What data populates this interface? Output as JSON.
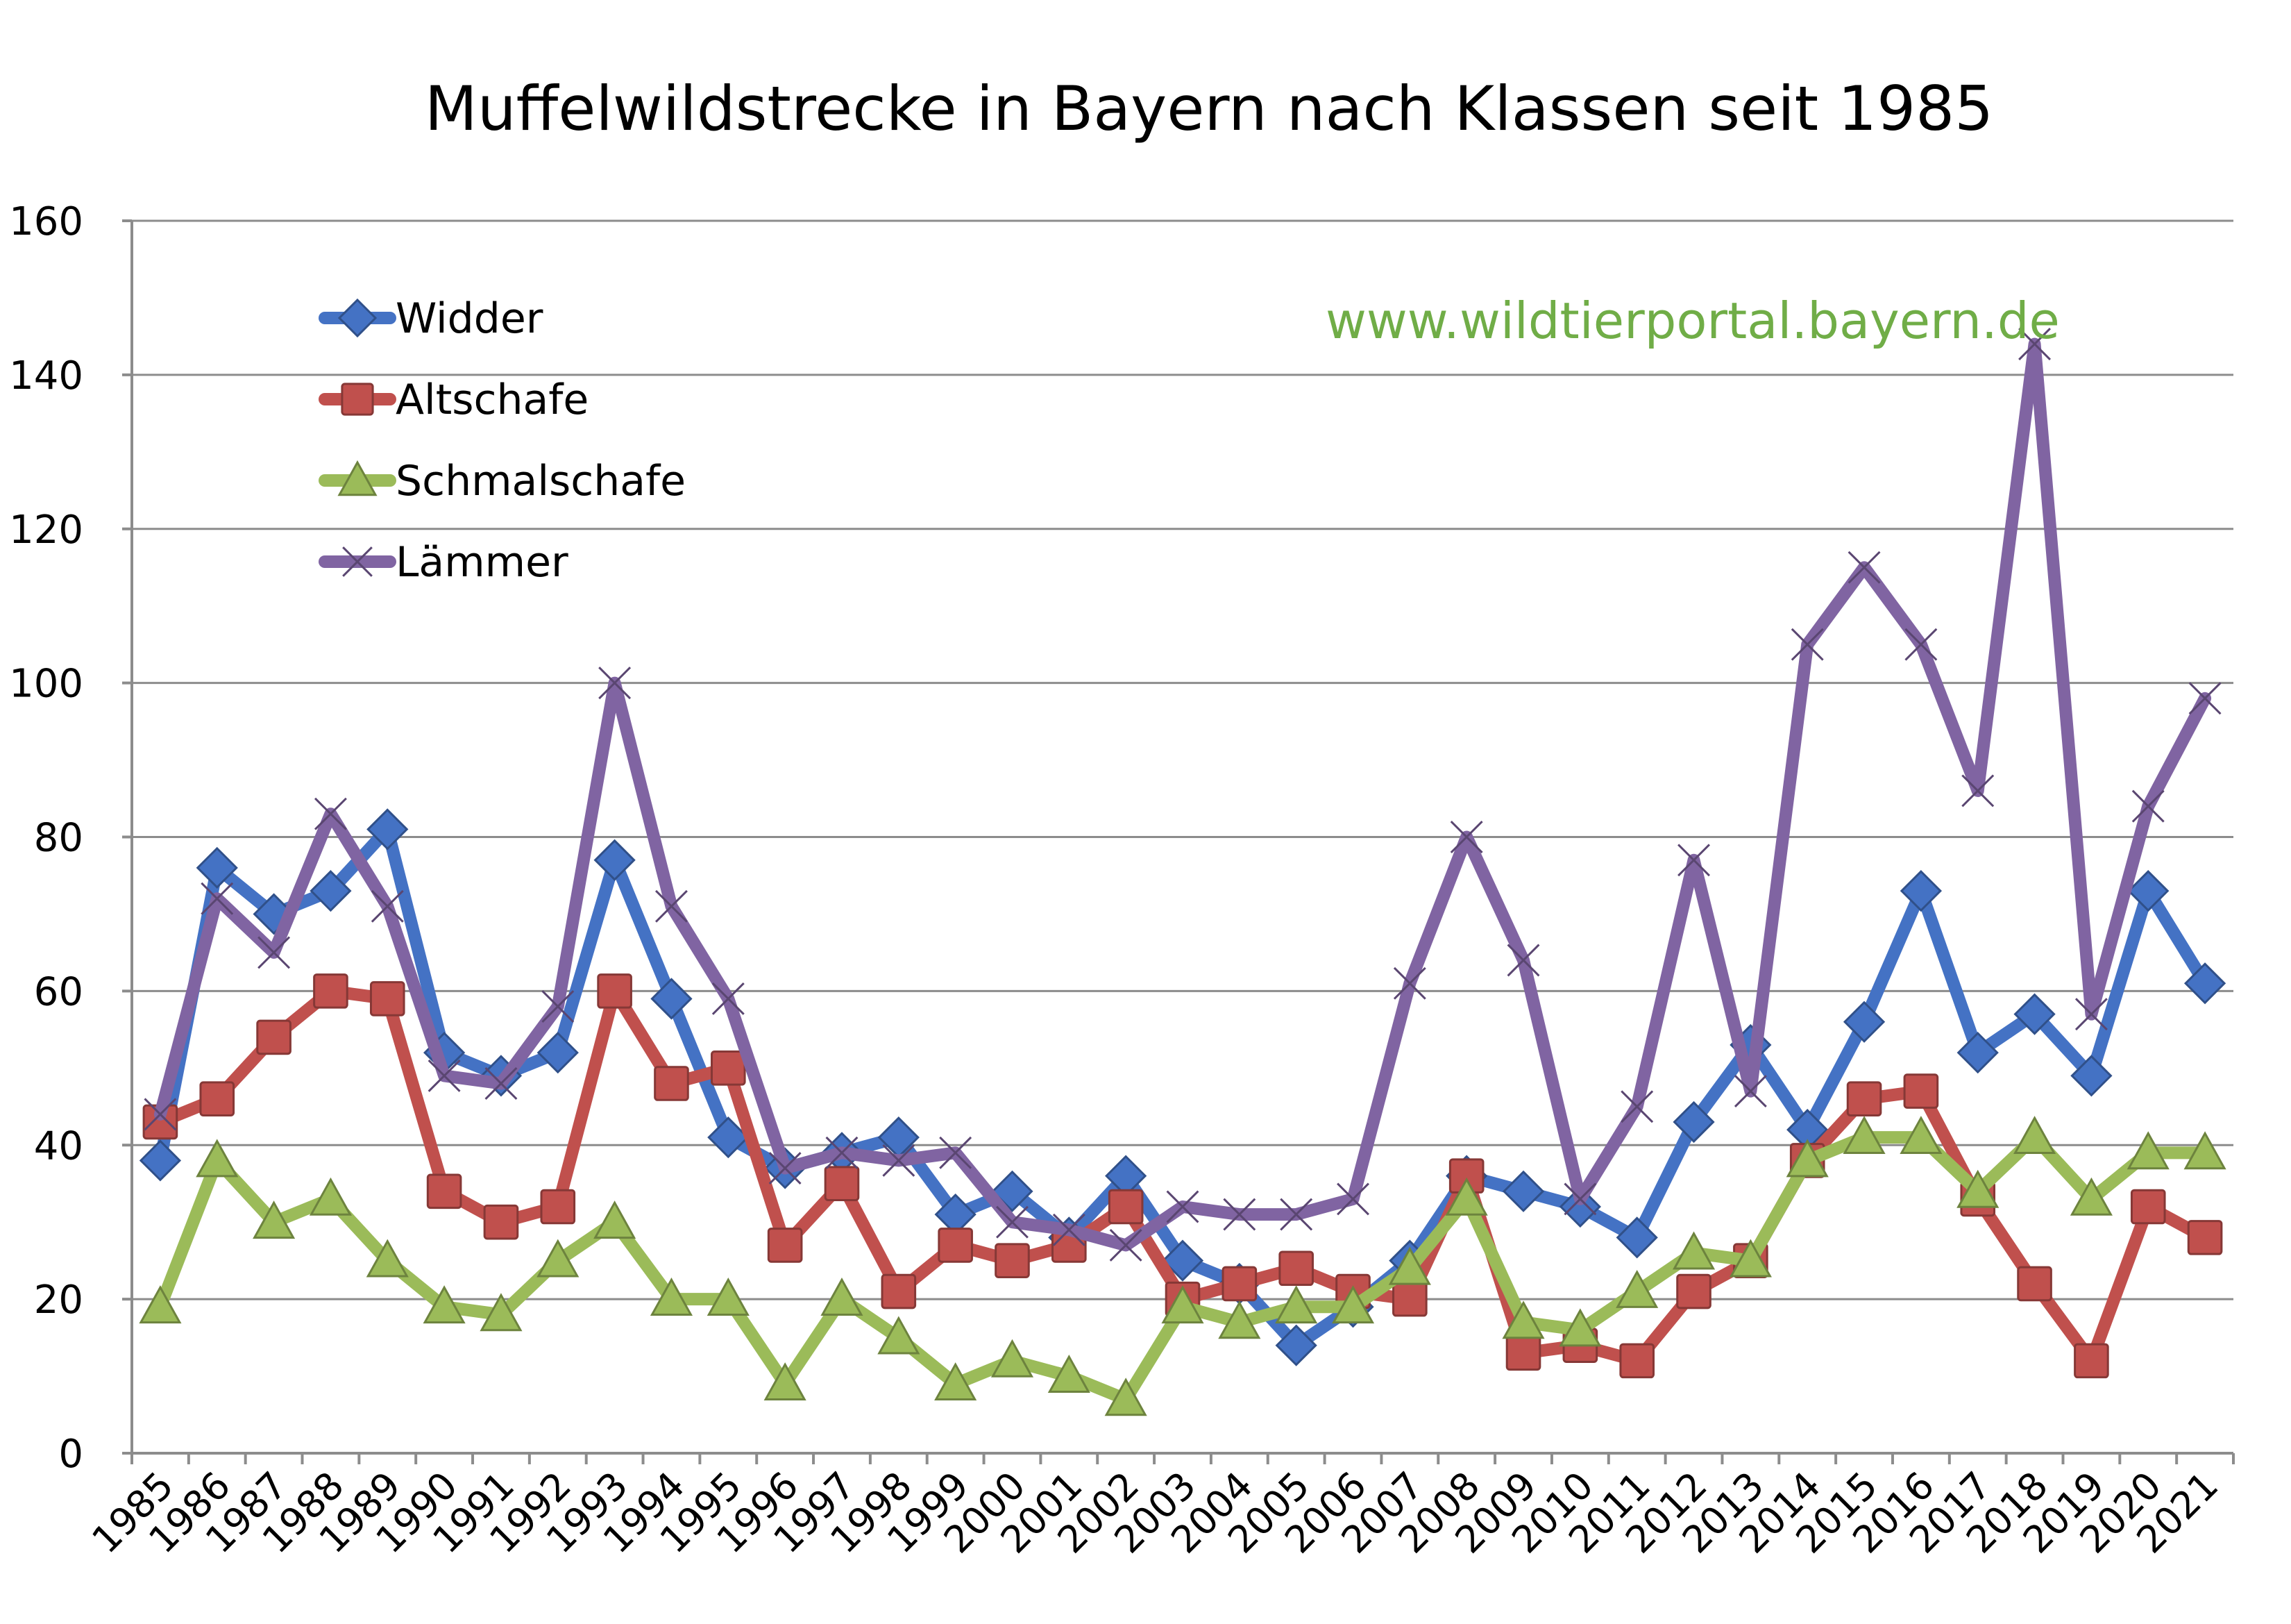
{
  "chart_data": {
    "type": "line",
    "title": "Muffelwildstrecke in Bayern nach Klassen seit 1985",
    "watermark": "www.wildtierportal.bayern.de",
    "watermark_color": "#70ad47",
    "xlabel": "",
    "ylabel": "",
    "ylim": [
      0,
      160
    ],
    "yticks": [
      "0",
      "20",
      "40",
      "60",
      "80",
      "100",
      "120",
      "140",
      "160"
    ],
    "grid": true,
    "legend_position": "top-left",
    "categories": [
      "1985",
      "1986",
      "1987",
      "1988",
      "1989",
      "1990",
      "1991",
      "1992",
      "1993",
      "1994",
      "1995",
      "1996",
      "1997",
      "1998",
      "1999",
      "2000",
      "2001",
      "2002",
      "2003",
      "2004",
      "2005",
      "2006",
      "2007",
      "2008",
      "2009",
      "2010",
      "2011",
      "2012",
      "2013",
      "2014",
      "2015",
      "2016",
      "2017",
      "2018",
      "2019",
      "2020",
      "2021"
    ],
    "series": [
      {
        "name": "Widder",
        "color": "#4472c4",
        "marker": "diamond",
        "values": [
          38,
          76,
          70,
          73,
          81,
          52,
          49,
          52,
          77,
          59,
          41,
          37,
          39,
          41,
          31,
          34,
          28,
          36,
          25,
          22,
          14,
          19,
          25,
          36,
          34,
          32,
          28,
          43,
          53,
          42,
          56,
          73,
          52,
          57,
          49,
          73,
          61
        ]
      },
      {
        "name": "Altschafe",
        "color": "#c0504d",
        "marker": "square",
        "values": [
          43,
          46,
          54,
          60,
          59,
          34,
          30,
          32,
          60,
          48,
          50,
          27,
          35,
          21,
          27,
          25,
          27,
          32,
          20,
          22,
          24,
          21,
          20,
          36,
          13,
          14,
          12,
          21,
          25,
          38,
          46,
          47,
          33,
          22,
          12,
          32,
          28
        ]
      },
      {
        "name": "Schmalschafe",
        "color": "#9bbb59",
        "marker": "triangle",
        "values": [
          19,
          38,
          30,
          33,
          25,
          19,
          18,
          25,
          30,
          20,
          20,
          9,
          20,
          15,
          9,
          12,
          10,
          7,
          19,
          17,
          19,
          19,
          24,
          33,
          17,
          16,
          21,
          26,
          25,
          38,
          41,
          41,
          34,
          41,
          33,
          39,
          39
        ]
      },
      {
        "name": "Lämmer",
        "color": "#8064a2",
        "marker": "x",
        "values": [
          44,
          72,
          65,
          83,
          71,
          49,
          48,
          58,
          100,
          71,
          59,
          37,
          39,
          38,
          39,
          30,
          29,
          27,
          32,
          31,
          31,
          33,
          61,
          80,
          64,
          33,
          45,
          77,
          47,
          105,
          115,
          105,
          86,
          144,
          57,
          84,
          98
        ]
      }
    ]
  }
}
